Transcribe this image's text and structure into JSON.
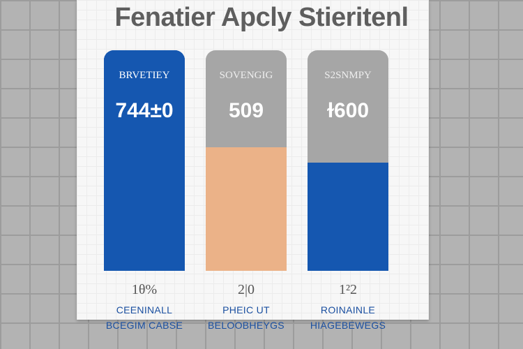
{
  "chart_data": {
    "type": "bar",
    "title": "Fenatier Apcly Stieritenl",
    "categories": [
      "BRVETIEY",
      "SOVENGIG",
      "S2SNMPY"
    ],
    "values": [
      "744±0",
      "509",
      "ɫ600"
    ],
    "fill_fraction": [
      1.0,
      0.56,
      0.49
    ],
    "percent_labels": [
      "1θ%",
      "2|0",
      "1²2"
    ],
    "bottom_labels": [
      [
        "CEENINALL",
        "BCEGIM CABSE"
      ],
      [
        "PHEIC UT",
        "BELOOBHEYGS"
      ],
      [
        "ROINAINLE",
        "HIAGEBEWEGS"
      ]
    ],
    "colors": {
      "blue": "#1557b0",
      "grey": "#a6a6a6",
      "orange": "#ebb288"
    }
  }
}
